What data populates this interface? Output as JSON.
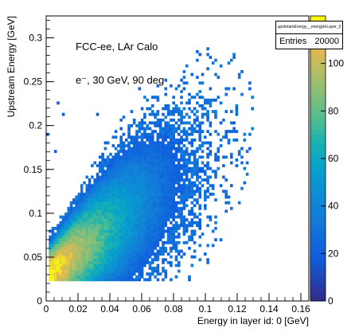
{
  "chart_data": {
    "type": "heatmap",
    "title": "",
    "xlabel": "Energy in layer id: 0 [GeV]",
    "ylabel": "Upstream Energy [GeV]",
    "xlim": [
      0,
      0.165
    ],
    "ylim": [
      0,
      0.325
    ],
    "xticks": [
      "0",
      "0.02",
      "0.04",
      "0.06",
      "0.08",
      "0.1",
      "0.12",
      "0.14",
      "0.16"
    ],
    "yticks": [
      "0",
      "0.05",
      "0.1",
      "0.15",
      "0.2",
      "0.25",
      "0.3"
    ],
    "annotations": [
      "FCC-ee, LAr Calo",
      "e⁻, 30 GeV, 90 deg"
    ],
    "stats": {
      "name": "upstreamEnergy__energyInLayer_0",
      "entries_label": "Entries",
      "entries": "20000"
    },
    "colorbar": {
      "min": 0,
      "max": 120,
      "ticks": [
        "0",
        "20",
        "40",
        "60",
        "80",
        "100"
      ]
    },
    "core": {
      "description_ridge": [
        {
          "x": 0.005,
          "y": 0.032,
          "count": 60
        },
        {
          "x": 0.01,
          "y": 0.04,
          "count": 110
        },
        {
          "x": 0.02,
          "y": 0.05,
          "count": 85
        },
        {
          "x": 0.03,
          "y": 0.065,
          "count": 40
        },
        {
          "x": 0.045,
          "y": 0.085,
          "count": 18
        },
        {
          "x": 0.06,
          "y": 0.11,
          "count": 6
        },
        {
          "x": 0.08,
          "y": 0.14,
          "count": 2
        }
      ]
    }
  }
}
